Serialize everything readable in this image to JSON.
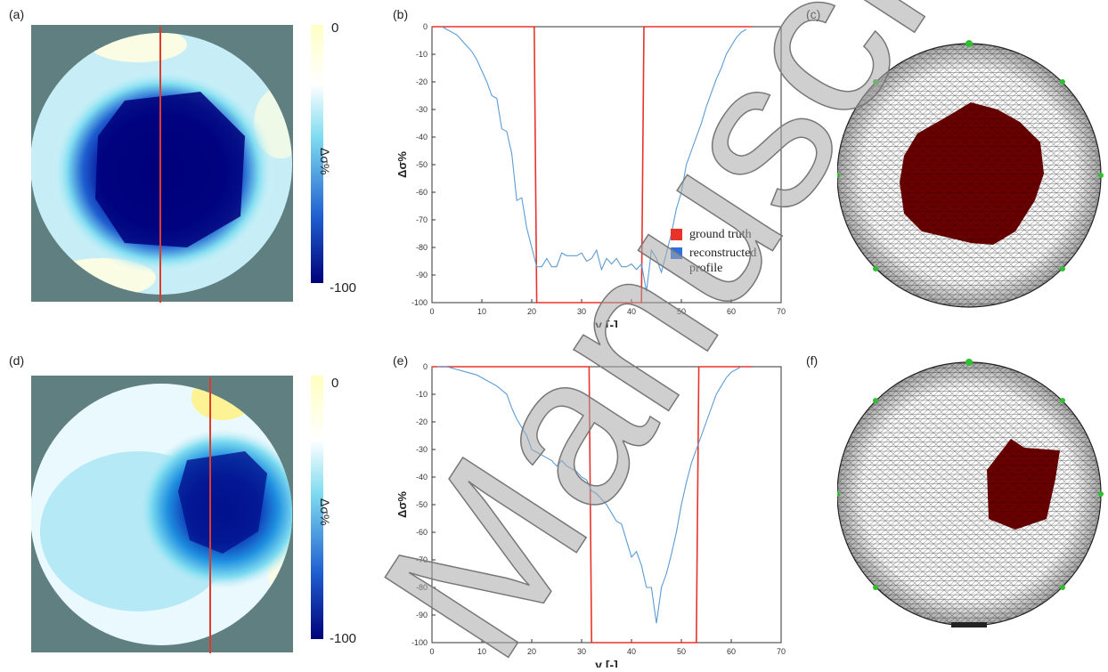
{
  "panels": {
    "a": {
      "label": "(a)"
    },
    "b": {
      "label": "(b)"
    },
    "c": {
      "label": "(c)"
    },
    "d": {
      "label": "(d)"
    },
    "e": {
      "label": "(e)"
    },
    "f": {
      "label": "(f)"
    }
  },
  "colorbar": {
    "top_label": "0",
    "bottom_label": "-100",
    "axis_label": "Δσ%",
    "colors": [
      "#ffffbf",
      "#ffffff",
      "#7fdcf0",
      "#1f5fd0",
      "#00007a"
    ]
  },
  "legend": {
    "ground_truth": "ground truth",
    "reconstructed_line1": "reconstructed",
    "reconstructed_line2": "profile",
    "ground_truth_color": "#e8332a",
    "reconstructed_color": "#2f6fe0"
  },
  "watermark": "Manuscript",
  "chart_data": [
    {
      "panel": "b",
      "type": "line",
      "xlabel": "y [-]",
      "ylabel": "Δσ%",
      "xlim": [
        0,
        70
      ],
      "ylim": [
        -100,
        0
      ],
      "xticks": [
        0,
        10,
        20,
        30,
        40,
        50,
        60,
        70
      ],
      "yticks": [
        0,
        -10,
        -20,
        -30,
        -40,
        -50,
        -60,
        -70,
        -80,
        -90,
        -100
      ],
      "grid": false,
      "legend_position": "right",
      "series": [
        {
          "name": "ground truth",
          "color": "#e8332a",
          "x": [
            0,
            20.5,
            21,
            42,
            42.5,
            64
          ],
          "y": [
            0,
            0,
            -100,
            -100,
            0,
            0
          ]
        },
        {
          "name": "reconstructed profile",
          "color": "#5b9bd5",
          "x": [
            2,
            3,
            4,
            5,
            6,
            7,
            8,
            9,
            10,
            11,
            12,
            13,
            14,
            15,
            16,
            17,
            18,
            19,
            20,
            21,
            22,
            23,
            24,
            25,
            26,
            27,
            28,
            29,
            30,
            31,
            32,
            33,
            34,
            35,
            36,
            37,
            38,
            39,
            40,
            41,
            42,
            43,
            44,
            45,
            46,
            47,
            48,
            49,
            50,
            51,
            52,
            53,
            54,
            55,
            56,
            57,
            58,
            59,
            60,
            61,
            62,
            63
          ],
          "y": [
            0,
            -1,
            -2,
            -3,
            -5,
            -7,
            -9,
            -12,
            -16,
            -20,
            -25,
            -26,
            -37,
            -38,
            -46,
            -63,
            -62,
            -73,
            -80,
            -87,
            -87,
            -84,
            -87,
            -87,
            -82,
            -83,
            -83,
            -83,
            -82,
            -85,
            -84,
            -81,
            -88,
            -84,
            -86,
            -84,
            -87,
            -87,
            -86,
            -88,
            -86,
            -96,
            -81,
            -84,
            -89,
            -82,
            -75,
            -66,
            -60,
            -50,
            -45,
            -40,
            -35,
            -29,
            -24,
            -19,
            -15,
            -10,
            -7,
            -4,
            -2,
            -1
          ]
        }
      ]
    },
    {
      "panel": "e",
      "type": "line",
      "xlabel": "y [-]",
      "ylabel": "Δσ%",
      "xlim": [
        0,
        70
      ],
      "ylim": [
        -100,
        0
      ],
      "xticks": [
        0,
        10,
        20,
        30,
        40,
        50,
        60,
        70
      ],
      "yticks": [
        0,
        -10,
        -20,
        -30,
        -40,
        -50,
        -60,
        -70,
        -80,
        -90,
        -100
      ],
      "grid": false,
      "series": [
        {
          "name": "ground truth",
          "color": "#e8332a",
          "x": [
            0,
            31.5,
            32,
            53,
            53.5,
            64
          ],
          "y": [
            0,
            0,
            -100,
            -100,
            0,
            0
          ]
        },
        {
          "name": "reconstructed profile",
          "color": "#5b9bd5",
          "x": [
            1,
            3,
            5,
            7,
            9,
            11,
            13,
            15,
            16,
            17,
            18,
            19,
            20,
            21,
            22,
            23,
            24,
            25,
            26,
            27,
            28,
            29,
            30,
            31,
            32,
            33,
            34,
            35,
            36,
            37,
            38,
            39,
            40,
            41,
            42,
            43,
            44,
            45,
            46,
            47,
            48,
            49,
            50,
            51,
            52,
            53,
            54,
            55,
            56,
            57,
            58,
            59,
            60,
            61,
            62
          ],
          "y": [
            0,
            0,
            -1,
            -2,
            -3,
            -5,
            -7,
            -10,
            -15,
            -19,
            -22,
            -25,
            -30,
            -31,
            -32,
            -33,
            -34,
            -36,
            -34,
            -36,
            -37,
            -38,
            -40,
            -41,
            -45,
            -46,
            -48,
            -50,
            -53,
            -56,
            -57,
            -63,
            -69,
            -67,
            -72,
            -80,
            -80,
            -93,
            -80,
            -75,
            -68,
            -60,
            -50,
            -42,
            -35,
            -30,
            -25,
            -20,
            -15,
            -10,
            -7,
            -4,
            -2,
            -1,
            0
          ]
        }
      ]
    }
  ]
}
